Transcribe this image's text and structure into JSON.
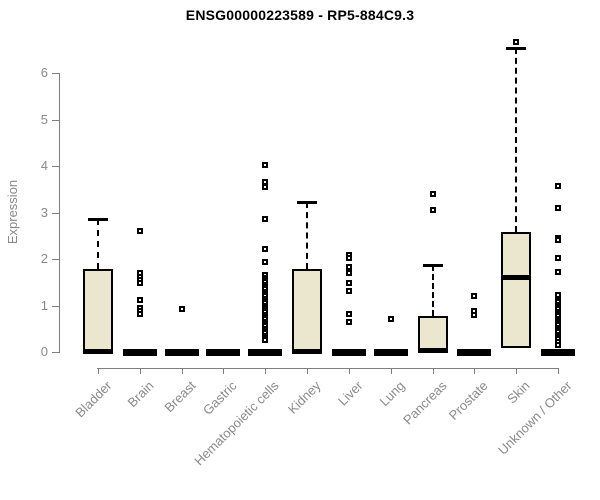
{
  "title": "ENSG00000223589 - RP5-884C9.3",
  "chart_data": {
    "type": "boxplot",
    "title": "ENSG00000223589 - RP5-884C9.3",
    "xlabel": "",
    "ylabel": "Expression",
    "ylim": [
      0,
      6.8
    ],
    "yticks": [
      0,
      1,
      2,
      3,
      4,
      5,
      6
    ],
    "grid": false,
    "legend": "none",
    "colors": {
      "box_fill": "#EBE6CE",
      "box_line": "#000000",
      "axis": "#7F7F7F",
      "label_text": "#8A8A8A",
      "title_text": "#000000",
      "background": "#FFFFFF"
    },
    "categories": [
      "Bladder",
      "Brain",
      "Breast",
      "Gastric",
      "Hematopoietic cells",
      "Kidney",
      "Liver",
      "Lung",
      "Pancreas",
      "Prostate",
      "Skin",
      "Unknown / Other"
    ],
    "boxes": [
      {
        "category": "Bladder",
        "q1": 0,
        "median": 0.02,
        "q3": 1.78,
        "whisker_low": 0,
        "whisker_high": 2.86,
        "outliers": []
      },
      {
        "category": "Brain",
        "q1": 0,
        "median": 0.01,
        "q3": 0.02,
        "whisker_low": 0,
        "whisker_high": 0.02,
        "outliers": [
          2.6,
          1.7,
          1.62,
          1.55,
          1.49,
          1.12,
          0.95,
          0.88,
          0.81
        ]
      },
      {
        "category": "Breast",
        "q1": 0,
        "median": 0.01,
        "q3": 0.02,
        "whisker_low": 0,
        "whisker_high": 0.02,
        "outliers": [
          0.93
        ]
      },
      {
        "category": "Gastric",
        "q1": 0,
        "median": 0.01,
        "q3": 0.02,
        "whisker_low": 0,
        "whisker_high": 0.02,
        "outliers": []
      },
      {
        "category": "Hematopoietic cells",
        "q1": 0,
        "median": 0.01,
        "q3": 0.02,
        "whisker_low": 0,
        "whisker_high": 0.02,
        "outliers": [
          4.02,
          3.66,
          3.55,
          2.86,
          2.22,
          1.94,
          1.65,
          1.6,
          1.55,
          1.5,
          1.45,
          1.4,
          1.35,
          1.3,
          1.25,
          1.2,
          1.15,
          1.1,
          1.05,
          1.0,
          0.95,
          0.9,
          0.85,
          0.8,
          0.75,
          0.7,
          0.65,
          0.6,
          0.55,
          0.5,
          0.45,
          0.4,
          0.35,
          0.3,
          0.26
        ]
      },
      {
        "category": "Kidney",
        "q1": 0,
        "median": 0.02,
        "q3": 1.78,
        "whisker_low": 0,
        "whisker_high": 3.22,
        "outliers": []
      },
      {
        "category": "Liver",
        "q1": 0,
        "median": 0.01,
        "q3": 0.02,
        "whisker_low": 0,
        "whisker_high": 0.02,
        "outliers": [
          2.08,
          2.02,
          1.83,
          1.7,
          1.48,
          1.32,
          0.82,
          0.65
        ]
      },
      {
        "category": "Lung",
        "q1": 0,
        "median": 0.01,
        "q3": 0.02,
        "whisker_low": 0,
        "whisker_high": 0.02,
        "outliers": [
          0.72
        ]
      },
      {
        "category": "Pancreas",
        "q1": 0,
        "median": 0.04,
        "q3": 0.78,
        "whisker_low": 0,
        "whisker_high": 1.87,
        "outliers": [
          3.4,
          3.06
        ]
      },
      {
        "category": "Prostate",
        "q1": 0,
        "median": 0.01,
        "q3": 0.02,
        "whisker_low": 0,
        "whisker_high": 0.02,
        "outliers": [
          1.2,
          0.88,
          0.8
        ]
      },
      {
        "category": "Skin",
        "q1": 0.08,
        "median": 1.61,
        "q3": 2.58,
        "whisker_low": 0.08,
        "whisker_high": 6.54,
        "outliers": [
          6.67
        ]
      },
      {
        "category": "Unknown / Other",
        "q1": 0,
        "median": 0.01,
        "q3": 0.02,
        "whisker_low": 0,
        "whisker_high": 0.02,
        "outliers": [
          3.57,
          3.1,
          2.46,
          2.4,
          2.02,
          1.72,
          1.23,
          1.12,
          1.07,
          1.02,
          0.97,
          0.92,
          0.87,
          0.82,
          0.77,
          0.72,
          0.67,
          0.62,
          0.57,
          0.52,
          0.47,
          0.42,
          0.37,
          0.32,
          0.27,
          0.22,
          0.15
        ]
      }
    ]
  }
}
